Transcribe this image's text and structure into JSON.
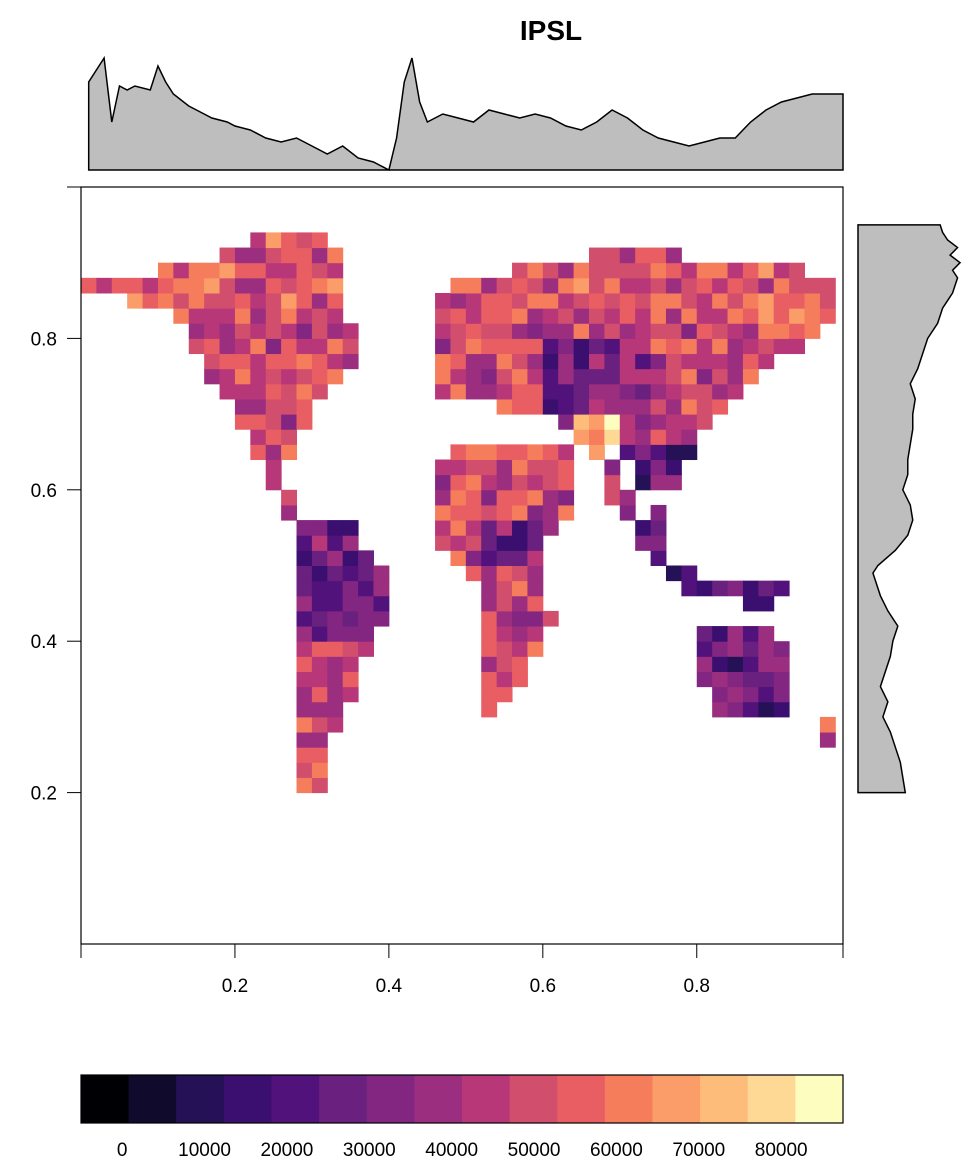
{
  "chart_data": {
    "type": "heatmap",
    "title": "IPSL",
    "xlabel": "",
    "ylabel": "",
    "xlim": [
      0.0,
      0.99
    ],
    "ylim": [
      0.0,
      1.0
    ],
    "x_ticks": [
      "0.2",
      "0.4",
      "0.6",
      "0.8"
    ],
    "y_ticks": [
      "0.2",
      "0.4",
      "0.6",
      "0.8"
    ],
    "grid": false,
    "color_scale": {
      "min": -5000,
      "max": 87500,
      "tick_labels": [
        "0",
        "10000",
        "20000",
        "30000",
        "40000",
        "50000",
        "60000",
        "70000",
        "80000"
      ],
      "tick_values": [
        0,
        10000,
        20000,
        30000,
        40000,
        50000,
        60000,
        70000,
        80000
      ],
      "colors": [
        "#000004",
        "#100b2d",
        "#251256",
        "#3b0f70",
        "#51127c",
        "#69207e",
        "#822681",
        "#9c2e7f",
        "#b73779",
        "#d24e6d",
        "#e85e63",
        "#f57d5c",
        "#fb9d68",
        "#febc7a",
        "#fdd995",
        "#fcfdbf"
      ]
    },
    "top_marginal": {
      "description": "column means",
      "x": [
        0.01,
        0.03,
        0.04,
        0.05,
        0.06,
        0.07,
        0.09,
        0.1,
        0.11,
        0.12,
        0.14,
        0.15,
        0.16,
        0.17,
        0.19,
        0.2,
        0.22,
        0.24,
        0.26,
        0.28,
        0.3,
        0.32,
        0.34,
        0.36,
        0.38,
        0.4,
        0.41,
        0.42,
        0.43,
        0.44,
        0.45,
        0.46,
        0.47,
        0.49,
        0.51,
        0.53,
        0.55,
        0.57,
        0.59,
        0.61,
        0.63,
        0.65,
        0.67,
        0.69,
        0.71,
        0.73,
        0.75,
        0.77,
        0.79,
        0.81,
        0.83,
        0.85,
        0.87,
        0.89,
        0.91,
        0.93,
        0.95,
        0.97,
        0.99
      ],
      "y": [
        52000,
        58000,
        42000,
        51000,
        50000,
        51000,
        50000,
        56000,
        52000,
        49000,
        46000,
        45000,
        44000,
        43000,
        42000,
        41000,
        40000,
        38000,
        37000,
        38000,
        36000,
        34000,
        36000,
        33000,
        32000,
        30000,
        38000,
        52000,
        58000,
        47000,
        42000,
        43000,
        44000,
        43000,
        42000,
        45000,
        44000,
        43000,
        44000,
        43000,
        41000,
        40000,
        42000,
        45000,
        43000,
        40000,
        38000,
        37000,
        36000,
        37000,
        38000,
        38000,
        42000,
        45000,
        47000,
        48000,
        49000,
        49000,
        49000
      ],
      "ylim": [
        30000,
        60000
      ]
    },
    "right_marginal": {
      "description": "row means",
      "y": [
        0.95,
        0.94,
        0.93,
        0.92,
        0.91,
        0.9,
        0.89,
        0.88,
        0.87,
        0.86,
        0.85,
        0.84,
        0.83,
        0.82,
        0.8,
        0.78,
        0.76,
        0.74,
        0.72,
        0.7,
        0.68,
        0.66,
        0.64,
        0.62,
        0.6,
        0.58,
        0.56,
        0.54,
        0.52,
        0.5,
        0.49,
        0.48,
        0.46,
        0.44,
        0.42,
        0.4,
        0.38,
        0.36,
        0.34,
        0.32,
        0.3,
        0.28,
        0.26,
        0.24,
        0.22,
        0.2
      ],
      "x": [
        48000,
        49000,
        51000,
        55000,
        52000,
        56000,
        53000,
        55000,
        54000,
        53000,
        51000,
        49000,
        48000,
        47000,
        43000,
        41000,
        39000,
        36000,
        38000,
        37000,
        37000,
        36000,
        35000,
        35000,
        33000,
        36000,
        37000,
        35000,
        30000,
        23000,
        21000,
        22000,
        24000,
        27000,
        31000,
        29000,
        28000,
        26000,
        24000,
        27000,
        25000,
        28000,
        30000,
        32000,
        33000,
        34000
      ],
      "xlim": [
        15000,
        60000
      ]
    }
  }
}
